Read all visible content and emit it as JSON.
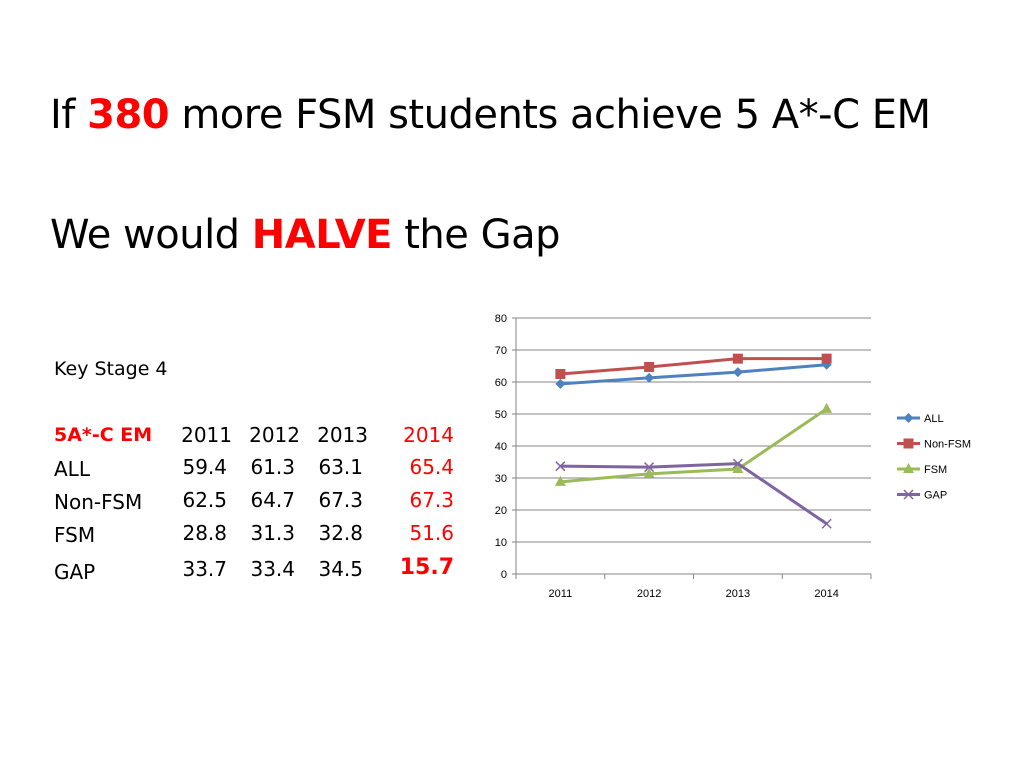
{
  "slide": {
    "title_line1": {
      "prefix": "If",
      "highlight": "380",
      "suffix": "more FSM students achieve 5 A*-C EM"
    },
    "title_line2": {
      "prefix": "We would",
      "highlight": "HALVE",
      "suffix": "the Gap"
    },
    "colors": {
      "highlight": "#ff0000"
    }
  },
  "table": {
    "caption": "Key Stage 4",
    "header": {
      "label": "5A*-C EM",
      "years": [
        "2011",
        "2012",
        "2013",
        "2014"
      ]
    },
    "rows": [
      {
        "label": "ALL",
        "values": [
          "59.4",
          "61.3",
          "63.1",
          "65.4"
        ]
      },
      {
        "label": "Non-FSM",
        "values": [
          "62.5",
          "64.7",
          "67.3",
          "67.3"
        ]
      },
      {
        "label": "FSM",
        "values": [
          "28.8",
          "31.3",
          "32.8",
          "51.6"
        ]
      },
      {
        "label": "GAP",
        "values": [
          "33.7",
          "33.4",
          "34.5",
          "15.7"
        ]
      }
    ]
  },
  "chart_data": {
    "type": "line",
    "x": [
      "2011",
      "2012",
      "2013",
      "2014"
    ],
    "ylim": [
      0,
      80
    ],
    "yticks": [
      0,
      10,
      20,
      30,
      40,
      50,
      60,
      70,
      80
    ],
    "grid": true,
    "legend_position": "right",
    "series": [
      {
        "name": "ALL",
        "values": [
          59.4,
          61.3,
          63.1,
          65.4
        ],
        "color": "#4f81bd",
        "marker": "diamond"
      },
      {
        "name": "Non-FSM",
        "values": [
          62.5,
          64.7,
          67.3,
          67.3
        ],
        "color": "#c0504d",
        "marker": "square"
      },
      {
        "name": "FSM",
        "values": [
          28.8,
          31.3,
          32.8,
          51.6
        ],
        "color": "#9bbb59",
        "marker": "triangle"
      },
      {
        "name": "GAP",
        "values": [
          33.7,
          33.4,
          34.5,
          15.7
        ],
        "color": "#8064a2",
        "marker": "x"
      }
    ]
  }
}
